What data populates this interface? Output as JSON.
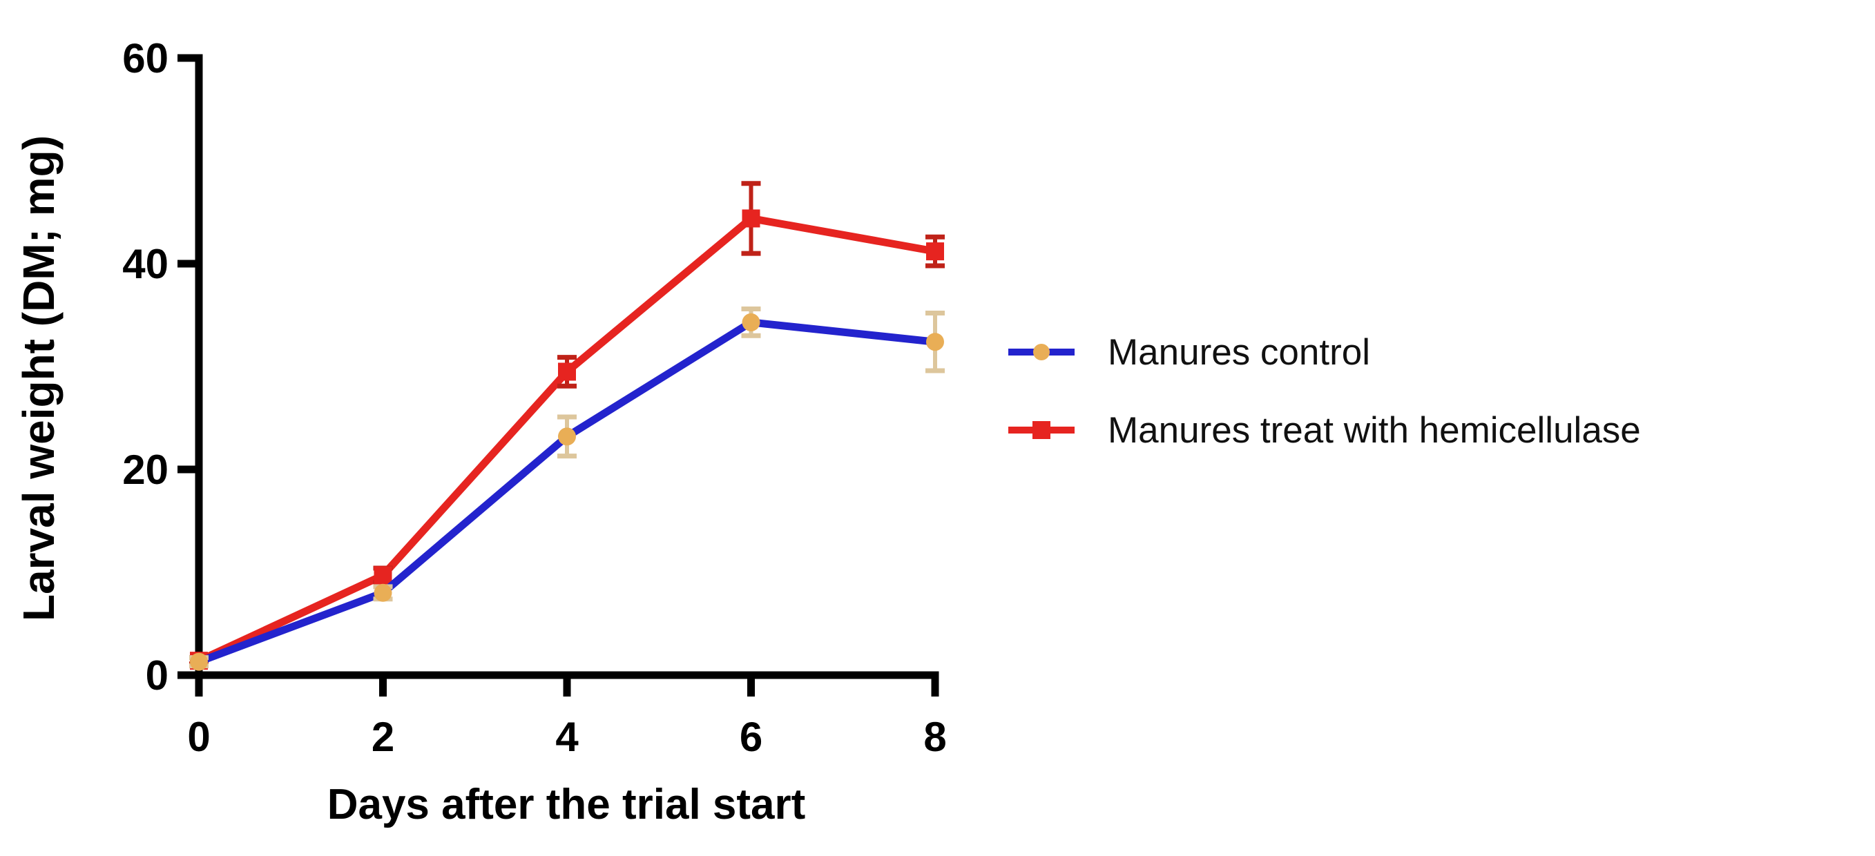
{
  "chart_data": {
    "type": "line",
    "x": [
      0,
      2,
      4,
      6,
      8
    ],
    "xticks": [
      "0",
      "2",
      "4",
      "6",
      "8"
    ],
    "yticks": [
      "0",
      "20",
      "40",
      "60"
    ],
    "xlabel": "Days after the trial start",
    "ylabel": "Larval weight (DM; mg)",
    "xlim": [
      0,
      8
    ],
    "ylim": [
      0,
      60
    ],
    "grid": false,
    "legend_position": "right-center",
    "axis_color": "#000000",
    "series": [
      {
        "name": "Manures control",
        "line_color": "#2323cd",
        "marker": "circle",
        "marker_color": "#e9ae56",
        "error_color": "#ddc69c",
        "values": [
          1.3,
          8.0,
          23.2,
          34.3,
          32.4
        ],
        "errors": [
          0.4,
          0.6,
          1.9,
          1.3,
          2.8
        ]
      },
      {
        "name": "Manures treat with hemicellulase",
        "line_color": "#e62420",
        "marker": "square",
        "marker_color": "#e62420",
        "error_color": "#bf2218",
        "values": [
          1.4,
          9.7,
          29.5,
          44.4,
          41.2
        ],
        "errors": [
          0.3,
          0.7,
          1.4,
          3.4,
          1.4
        ]
      }
    ]
  }
}
